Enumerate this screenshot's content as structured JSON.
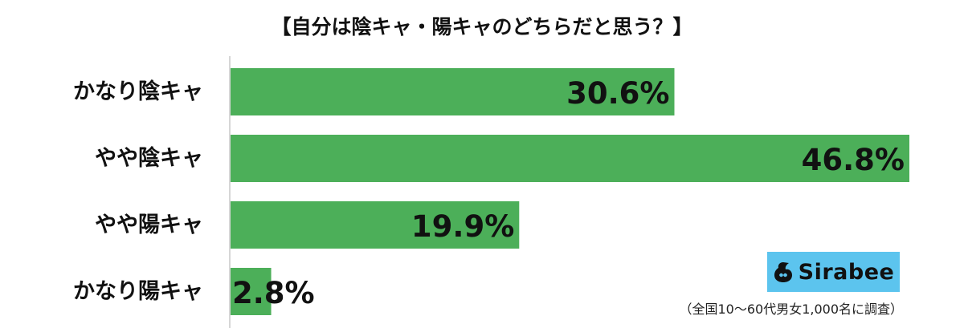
{
  "title": "【自分は陰キャ・陽キャのどちらだと思う？】",
  "chart_data": {
    "type": "bar",
    "orientation": "horizontal",
    "categories": [
      "かなり陰キャ",
      "やや陰キャ",
      "やや陽キャ",
      "かなり陽キャ"
    ],
    "values": [
      30.6,
      46.8,
      19.9,
      2.8
    ],
    "value_labels": [
      "30.6%",
      "46.8%",
      "19.9%",
      "2.8%"
    ],
    "unit": "%",
    "xlim": [
      0,
      46.8
    ],
    "grid": false,
    "legend": "none",
    "bar_color": "#4caf59"
  },
  "logo": {
    "text": "Sirabee",
    "background": "#5cc4ee",
    "icon": "sirabee-logo-icon"
  },
  "footnote": "（全国10〜60代男女1,000名に調査）"
}
